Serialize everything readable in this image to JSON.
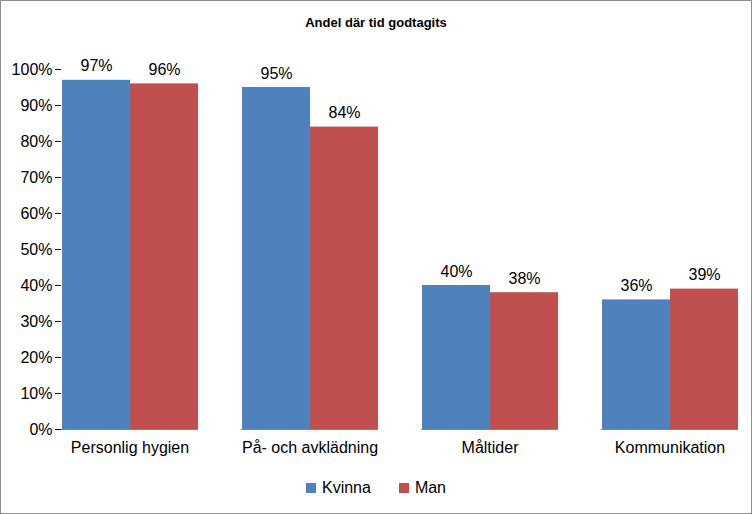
{
  "chart_data": {
    "type": "bar",
    "title": "Andel där tid godtagits",
    "categories": [
      "Personlig hygien",
      "På- och avklädning",
      "Måltider",
      "Kommunikation"
    ],
    "series": [
      {
        "name": "Kvinna",
        "color": "#4f81bd",
        "values": [
          97,
          95,
          40,
          36
        ],
        "value_labels": [
          "97%",
          "95%",
          "40%",
          "36%"
        ]
      },
      {
        "name": "Man",
        "color": "#c0504d",
        "values": [
          96,
          84,
          38,
          39
        ],
        "value_labels": [
          "96%",
          "84%",
          "38%",
          "39%"
        ]
      }
    ],
    "ylim": [
      0,
      100
    ],
    "yticks": [
      {
        "value": 0,
        "label": "0%"
      },
      {
        "value": 10,
        "label": "10%"
      },
      {
        "value": 20,
        "label": "20%"
      },
      {
        "value": 30,
        "label": "30%"
      },
      {
        "value": 40,
        "label": "40%"
      },
      {
        "value": 50,
        "label": "50%"
      },
      {
        "value": 60,
        "label": "60%"
      },
      {
        "value": 70,
        "label": "70%"
      },
      {
        "value": 80,
        "label": "80%"
      },
      {
        "value": 90,
        "label": "90%"
      },
      {
        "value": 100,
        "label": "100%"
      }
    ],
    "grid": false,
    "legend": "bottom",
    "data_labels": true
  }
}
